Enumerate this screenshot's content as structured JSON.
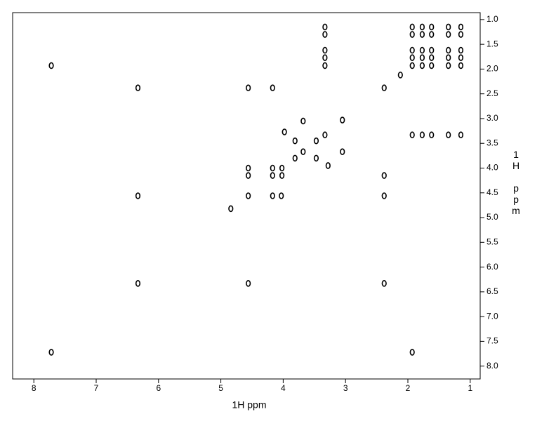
{
  "chart_data": {
    "type": "scatter",
    "x_label": "1H ppm",
    "y_label": "1H ppm",
    "x": [
      7.72,
      7.72,
      6.33,
      6.33,
      6.33,
      4.56,
      4.56,
      4.56,
      4.56,
      4.56,
      4.17,
      4.17,
      4.17,
      4.17,
      4.02,
      4.02,
      4.03,
      4.84,
      3.68,
      3.68,
      3.81,
      3.81,
      3.47,
      3.47,
      3.98,
      3.33,
      3.33,
      3.33,
      3.33,
      3.33,
      3.33,
      3.28,
      3.05,
      3.05,
      2.38,
      2.38,
      2.38,
      2.38,
      2.12,
      1.93,
      1.93,
      1.93,
      1.93,
      1.93,
      1.93,
      1.93,
      1.77,
      1.77,
      1.77,
      1.77,
      1.77,
      1.77,
      1.62,
      1.62,
      1.62,
      1.62,
      1.62,
      1.62,
      1.35,
      1.35,
      1.35,
      1.35,
      1.35,
      1.35,
      1.15,
      1.15,
      1.15,
      1.15,
      1.15,
      1.15
    ],
    "values": [
      1.93,
      7.72,
      2.38,
      4.56,
      6.33,
      2.38,
      4.0,
      4.15,
      4.56,
      6.33,
      2.38,
      4.0,
      4.15,
      4.56,
      4.0,
      4.15,
      4.56,
      4.82,
      3.05,
      3.67,
      3.45,
      3.8,
      3.45,
      3.8,
      3.27,
      1.15,
      1.3,
      1.62,
      1.77,
      1.93,
      3.33,
      3.95,
      3.03,
      3.67,
      2.38,
      4.15,
      4.56,
      6.33,
      2.12,
      1.15,
      1.3,
      1.62,
      1.77,
      1.93,
      3.33,
      7.72,
      1.15,
      1.3,
      1.62,
      1.77,
      1.93,
      3.33,
      1.15,
      1.3,
      1.62,
      1.77,
      1.93,
      3.33,
      1.15,
      1.3,
      1.62,
      1.77,
      1.93,
      3.33,
      1.15,
      1.3,
      1.62,
      1.77,
      1.93,
      3.33
    ],
    "color": "#000000",
    "xlim": [
      8.34,
      0.84
    ],
    "xticks": [
      8,
      7,
      6,
      5,
      4,
      3,
      2,
      1
    ],
    "ylim": [
      8.26,
      0.86
    ],
    "yticks": [
      {
        "value": 1,
        "label": "1.0"
      },
      1.5,
      {
        "value": 2,
        "label": "2.0"
      },
      2.5,
      {
        "value": 3,
        "label": "3.0"
      },
      3.5,
      {
        "value": 4,
        "label": "4.0"
      },
      4.5,
      {
        "value": 5,
        "label": "5.0"
      },
      5.5,
      {
        "value": 6,
        "label": "6.0"
      },
      6.5,
      {
        "value": 7,
        "label": "7.0"
      },
      7.5,
      {
        "value": 8,
        "label": "8.0"
      }
    ]
  }
}
